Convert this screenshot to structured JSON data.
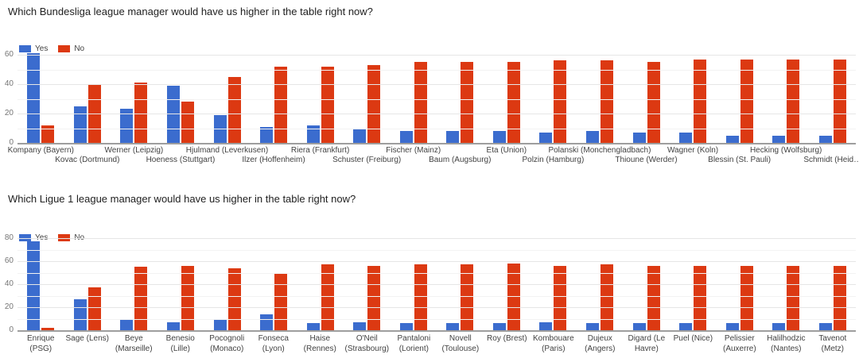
{
  "page": {
    "background_color": "#ffffff",
    "text_colors": {
      "title": "#212121",
      "axis_tick": "#757575",
      "category_label": "#424242"
    },
    "grid_colors": {
      "major": "#e6e6e6",
      "minor": "#f3f3f3",
      "baseline": "#9e9e9e"
    }
  },
  "chart_data": [
    {
      "type": "bar",
      "title": "Which Bundesliga league manager would have us higher in the table right now?",
      "xlabel": "",
      "ylabel": "",
      "grid": true,
      "legend_position": "top-left",
      "legend": [
        "Yes",
        "No"
      ],
      "ylim": [
        0,
        60
      ],
      "yticks": [
        0,
        20,
        40,
        60
      ],
      "grid_step": 10,
      "category_label_layout": "staggered",
      "categories": [
        "Kompany (Bayern)",
        "Kovac (Dortmund)",
        "Werner (Leipzig)",
        "Hoeness (Stuttgart)",
        "Hjulmand (Leverkusen)",
        "Ilzer (Hoffenheim)",
        "Riera (Frankfurt)",
        "Schuster (Freiburg)",
        "Fischer (Mainz)",
        "Baum (Augsburg)",
        "Eta (Union)",
        "Polzin (Hamburg)",
        "Polanski (Monchengladbach)",
        "Thioune (Werder)",
        "Wagner (Koln)",
        "Blessin (St. Pauli)",
        "Hecking (Wolfsburg)",
        "Schmidt (Heid…"
      ],
      "series": [
        {
          "name": "Yes",
          "color": "#3b6cce",
          "values": [
            61,
            25,
            23,
            39,
            19,
            11,
            12,
            9,
            8,
            8,
            8,
            7,
            8,
            7,
            7,
            5,
            5,
            5
          ]
        },
        {
          "name": "No",
          "color": "#dc3912",
          "values": [
            12,
            40,
            41,
            28,
            45,
            52,
            52,
            53,
            55,
            55,
            55,
            56,
            56,
            55,
            57,
            57,
            57,
            57
          ]
        }
      ]
    },
    {
      "type": "bar",
      "title": "Which Ligue 1 league manager would have us higher in the table right now?",
      "xlabel": "",
      "ylabel": "",
      "grid": true,
      "legend_position": "top-left",
      "legend": [
        "Yes",
        "No"
      ],
      "ylim": [
        0,
        80
      ],
      "yticks": [
        0,
        20,
        40,
        60,
        80
      ],
      "grid_step": 10,
      "category_label_layout": "wrapped",
      "categories": [
        "Enrique (PSG)",
        "Sage (Lens)",
        "Beye (Marseille)",
        "Benesio (Lille)",
        "Pocognoli (Monaco)",
        "Fonseca (Lyon)",
        "Haise (Rennes)",
        "O'Neil (Strasbourg)",
        "Pantaloni (Lorient)",
        "Novell (Toulouse)",
        "Roy (Brest)",
        "Kombouare (Paris)",
        "Dujeux (Angers)",
        "Digard (Le Havre)",
        "Puel (Nice)",
        "Pelissier (Auxerre)",
        "Halilhodzic (Nantes)",
        "Tavenot (Metz)"
      ],
      "series": [
        {
          "name": "Yes",
          "color": "#3b6cce",
          "values": [
            77,
            27,
            9,
            7,
            9,
            14,
            6,
            7,
            6,
            6,
            6,
            7,
            6,
            6,
            6,
            6,
            6,
            6
          ]
        },
        {
          "name": "No",
          "color": "#dc3912",
          "values": [
            2,
            37,
            55,
            56,
            54,
            49,
            57,
            56,
            57,
            57,
            58,
            56,
            57,
            56,
            56,
            56,
            56,
            56
          ]
        }
      ]
    }
  ]
}
